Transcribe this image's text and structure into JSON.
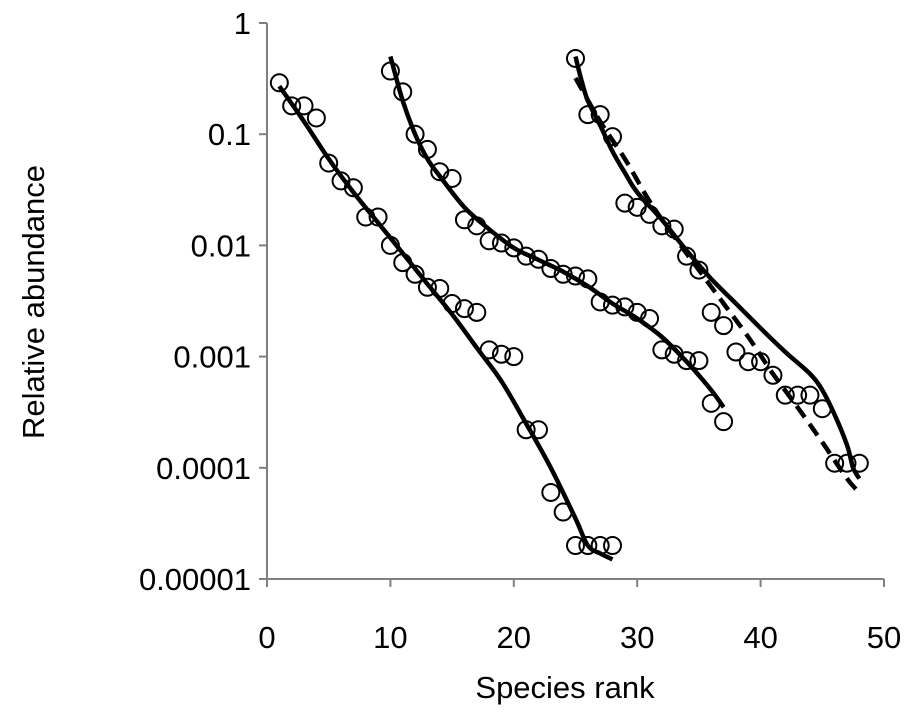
{
  "chart_data": {
    "type": "scatter",
    "xlabel": "Species rank",
    "ylabel": "Relative abundance",
    "xlim": [
      0,
      50
    ],
    "ylim": [
      1e-05,
      1
    ],
    "yscale": "log",
    "grid": false,
    "legend": "none",
    "x_ticks": [
      "0",
      "10",
      "20",
      "30",
      "40",
      "50"
    ],
    "y_ticks": [
      "0.00001",
      "0.0001",
      "0.001",
      "0.01",
      "0.1",
      "1"
    ],
    "series": [
      {
        "kind": "points",
        "x": [
          1,
          2,
          3,
          4,
          5,
          6,
          7,
          8,
          9,
          10,
          11,
          12,
          13,
          14,
          15,
          16,
          17,
          18,
          19,
          20,
          21,
          22,
          23,
          24,
          25,
          26,
          27,
          28
        ],
        "y": [
          0.29,
          0.18,
          0.18,
          0.14,
          0.055,
          0.038,
          0.033,
          0.018,
          0.018,
          0.01,
          0.007,
          0.0055,
          0.0042,
          0.0041,
          0.003,
          0.0027,
          0.0025,
          0.00115,
          0.00105,
          0.001,
          0.00022,
          0.00022,
          6e-05,
          4e-05,
          2e-05,
          2e-05,
          2e-05,
          2e-05
        ]
      },
      {
        "kind": "line",
        "x": [
          1,
          3,
          5,
          7,
          9,
          11,
          13,
          15,
          17,
          19,
          21,
          23,
          25,
          26,
          27,
          28
        ],
        "y": [
          0.27,
          0.13,
          0.06,
          0.03,
          0.016,
          0.0085,
          0.0045,
          0.0024,
          0.0012,
          0.0006,
          0.00025,
          0.0001,
          3.5e-05,
          2e-05,
          1.7e-05,
          1.5e-05
        ]
      },
      {
        "kind": "points",
        "x": [
          10,
          11,
          12,
          13,
          14,
          15,
          16,
          17,
          18,
          19,
          20,
          21,
          22,
          23,
          24,
          25,
          26,
          27,
          28,
          29,
          30,
          31,
          32,
          33,
          34,
          35,
          36,
          37
        ],
        "y": [
          0.37,
          0.24,
          0.1,
          0.073,
          0.046,
          0.04,
          0.017,
          0.015,
          0.011,
          0.0105,
          0.0095,
          0.008,
          0.0075,
          0.0062,
          0.0055,
          0.0053,
          0.005,
          0.0031,
          0.0029,
          0.0028,
          0.0025,
          0.0022,
          0.00115,
          0.00105,
          0.00092,
          0.00092,
          0.00038,
          0.00026
        ]
      },
      {
        "kind": "line",
        "x": [
          10,
          11,
          12,
          13,
          14,
          16,
          18,
          20,
          22,
          24,
          26,
          28,
          30,
          32,
          34,
          36,
          37
        ],
        "y": [
          0.5,
          0.2,
          0.1,
          0.06,
          0.042,
          0.022,
          0.014,
          0.0095,
          0.0074,
          0.0058,
          0.0043,
          0.003,
          0.0022,
          0.0015,
          0.0009,
          0.0005,
          0.00035
        ]
      },
      {
        "kind": "points",
        "x": [
          25,
          26,
          27,
          28,
          29,
          30,
          31,
          32,
          33,
          34,
          35,
          36,
          37,
          38,
          39,
          40,
          41,
          42,
          43,
          44,
          45,
          46,
          47,
          48
        ],
        "y": [
          0.48,
          0.15,
          0.15,
          0.095,
          0.024,
          0.022,
          0.019,
          0.015,
          0.014,
          0.008,
          0.006,
          0.0025,
          0.0019,
          0.0011,
          0.0009,
          0.0009,
          0.00068,
          0.00045,
          0.00045,
          0.00045,
          0.00034,
          0.00011,
          0.00011,
          0.00011
        ]
      },
      {
        "kind": "line",
        "x": [
          25,
          25.5,
          26,
          27,
          28,
          29,
          30,
          32,
          34,
          36,
          38,
          40,
          42,
          44,
          45,
          46,
          47,
          47.5,
          48
        ],
        "y": [
          0.5,
          0.3,
          0.2,
          0.12,
          0.07,
          0.045,
          0.03,
          0.017,
          0.009,
          0.005,
          0.003,
          0.0018,
          0.0011,
          0.0007,
          0.0005,
          0.0003,
          0.00016,
          0.0001,
          8e-05
        ]
      },
      {
        "kind": "dashed-line",
        "x": [
          25,
          27,
          29,
          31,
          33,
          35,
          37,
          39,
          41,
          43,
          45,
          47,
          48
        ],
        "y": [
          0.32,
          0.13,
          0.06,
          0.025,
          0.012,
          0.006,
          0.003,
          0.0015,
          0.0007,
          0.00035,
          0.00017,
          8e-05,
          6e-05
        ]
      }
    ]
  }
}
